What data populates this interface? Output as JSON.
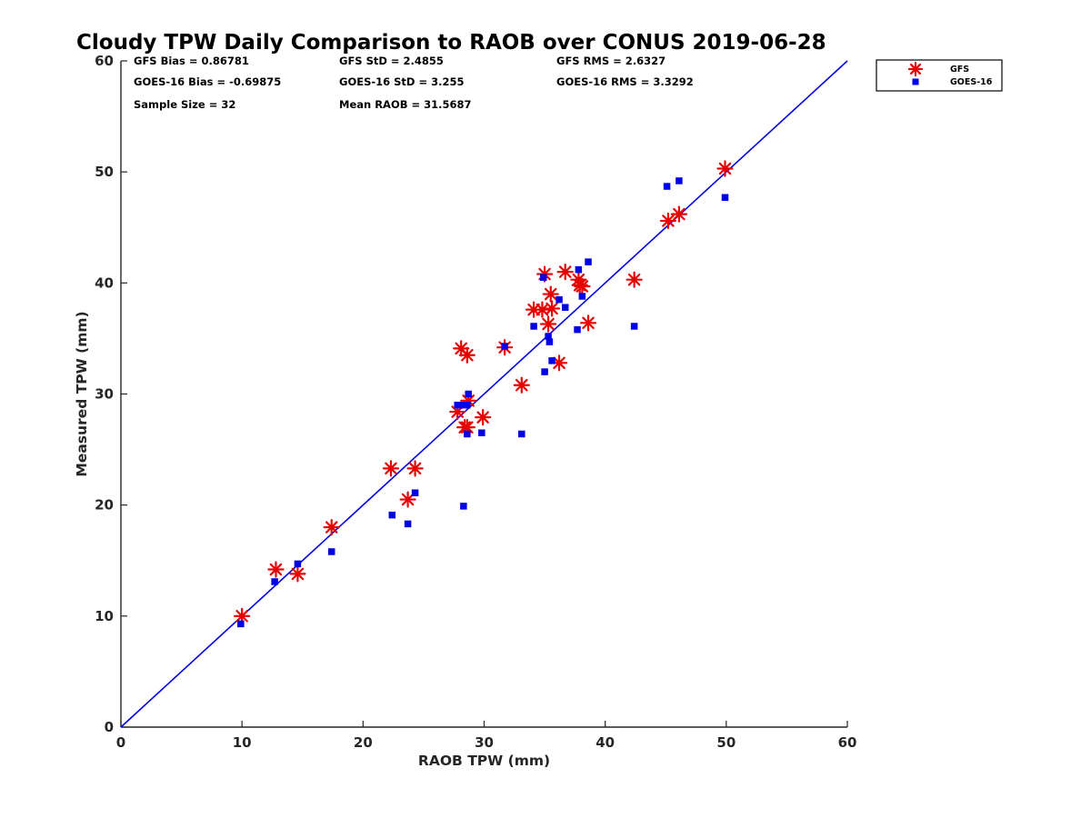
{
  "chart_data": {
    "type": "scatter",
    "title": "Cloudy TPW Daily Comparison to RAOB over CONUS 2019-06-28",
    "xlabel": "RAOB TPW (mm)",
    "ylabel": "Measured TPW (mm)",
    "xlim": [
      0,
      60
    ],
    "ylim": [
      0,
      60
    ],
    "xticks": [
      "0",
      "10",
      "20",
      "30",
      "40",
      "50",
      "60"
    ],
    "yticks": [
      "0",
      "10",
      "20",
      "30",
      "40",
      "50",
      "60"
    ],
    "grid": false,
    "legend_position": "top-right, outside plot",
    "stats": [
      [
        "GFS Bias = 0.86781",
        "GFS StD = 2.4855",
        "GFS RMS = 2.6327"
      ],
      [
        "GOES-16 Bias = -0.69875",
        "GOES-16 StD = 3.255",
        "GOES-16 RMS = 3.3292"
      ],
      [
        "Sample Size = 32",
        "Mean RAOB = 31.5687"
      ]
    ],
    "reference_line": {
      "x": [
        0,
        60
      ],
      "y": [
        0,
        60
      ],
      "color": "#0000e6"
    },
    "series": [
      {
        "name": "GFS",
        "marker": "asterisk",
        "color": "#e60000",
        "points": [
          [
            10.0,
            10.0
          ],
          [
            12.8,
            14.2
          ],
          [
            14.6,
            13.8
          ],
          [
            17.4,
            18.0
          ],
          [
            22.3,
            23.3
          ],
          [
            24.3,
            23.3
          ],
          [
            23.7,
            20.5
          ],
          [
            27.8,
            28.4
          ],
          [
            28.1,
            34.1
          ],
          [
            28.6,
            33.5
          ],
          [
            28.4,
            27.0
          ],
          [
            28.6,
            27.0
          ],
          [
            28.7,
            29.4
          ],
          [
            29.9,
            27.9
          ],
          [
            31.7,
            34.2
          ],
          [
            33.1,
            30.8
          ],
          [
            34.1,
            37.6
          ],
          [
            34.8,
            37.6
          ],
          [
            35.0,
            40.8
          ],
          [
            35.3,
            36.3
          ],
          [
            35.5,
            39.0
          ],
          [
            35.6,
            37.7
          ],
          [
            36.2,
            32.8
          ],
          [
            36.7,
            41.0
          ],
          [
            37.8,
            40.3
          ],
          [
            37.9,
            39.8
          ],
          [
            38.1,
            39.7
          ],
          [
            38.6,
            36.4
          ],
          [
            42.4,
            40.3
          ],
          [
            45.2,
            45.6
          ],
          [
            46.1,
            46.2
          ],
          [
            49.9,
            50.3
          ]
        ]
      },
      {
        "name": "GOES-16",
        "marker": "square",
        "color": "#0000e6",
        "points": [
          [
            9.9,
            9.3
          ],
          [
            12.7,
            13.1
          ],
          [
            14.6,
            14.7
          ],
          [
            17.4,
            15.8
          ],
          [
            22.4,
            19.1
          ],
          [
            24.3,
            21.1
          ],
          [
            23.7,
            18.3
          ],
          [
            27.8,
            29.0
          ],
          [
            28.2,
            29.0
          ],
          [
            28.7,
            30.0
          ],
          [
            28.6,
            26.4
          ],
          [
            28.6,
            29.0
          ],
          [
            28.3,
            19.9
          ],
          [
            29.8,
            26.5
          ],
          [
            31.7,
            34.3
          ],
          [
            33.1,
            26.4
          ],
          [
            34.1,
            36.1
          ],
          [
            34.9,
            40.5
          ],
          [
            35.0,
            32.0
          ],
          [
            35.3,
            35.2
          ],
          [
            35.4,
            34.7
          ],
          [
            35.6,
            33.0
          ],
          [
            36.2,
            38.5
          ],
          [
            36.7,
            37.8
          ],
          [
            37.7,
            35.8
          ],
          [
            37.8,
            41.2
          ],
          [
            38.1,
            38.8
          ],
          [
            38.6,
            41.9
          ],
          [
            42.4,
            36.1
          ],
          [
            45.1,
            48.7
          ],
          [
            46.1,
            49.2
          ],
          [
            49.9,
            47.7
          ]
        ]
      }
    ]
  }
}
